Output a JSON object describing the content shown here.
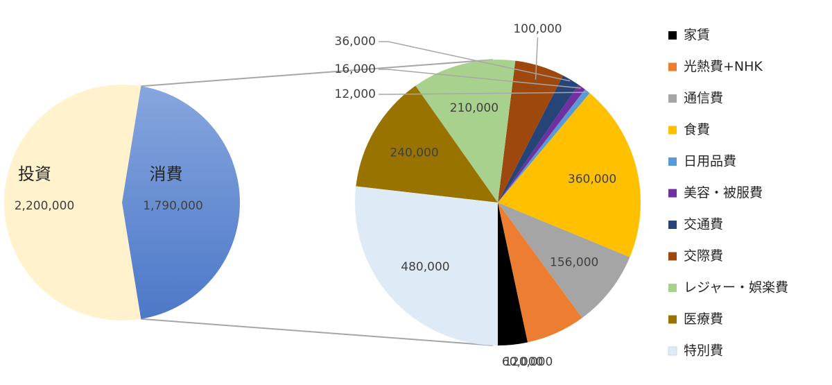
{
  "chart_data": {
    "type": "pie",
    "primary": {
      "slices": [
        {
          "name": "投資",
          "value": 2200000,
          "label": "2,200,000",
          "color": "#FFF2CC"
        },
        {
          "name": "消費",
          "value": 1790000,
          "label": "1,790,000",
          "color": "#4472C4"
        }
      ]
    },
    "breakdown": {
      "of": "消費",
      "slices": [
        {
          "name": "家賃",
          "value": 60000,
          "label": "60,000",
          "color": "#000000"
        },
        {
          "name": "光熱費+NHK",
          "value": 120000,
          "label": "120,000",
          "color": "#ED7D31"
        },
        {
          "name": "通信費",
          "value": 156000,
          "label": "156,000",
          "color": "#A5A5A5"
        },
        {
          "name": "食費",
          "value": 360000,
          "label": "360,000",
          "color": "#FFC000"
        },
        {
          "name": "日用品費",
          "value": 12000,
          "label": "12,000",
          "color": "#5B9BD5"
        },
        {
          "name": "美容・被服費",
          "value": 16000,
          "label": "16,000",
          "color": "#7030A0"
        },
        {
          "name": "交通費",
          "value": 36000,
          "label": "36,000",
          "color": "#264478"
        },
        {
          "name": "交際費",
          "value": 100000,
          "label": "100,000",
          "color": "#9E480E"
        },
        {
          "name": "レジャー・娯楽費",
          "value": 210000,
          "label": "210,000",
          "color": "#A9D18E"
        },
        {
          "name": "医療費",
          "value": 240000,
          "label": "240,000",
          "color": "#997300"
        },
        {
          "name": "特別費",
          "value": 480000,
          "label": "480,000",
          "color": "#DEEBF7"
        }
      ]
    },
    "legend_position": "right"
  }
}
